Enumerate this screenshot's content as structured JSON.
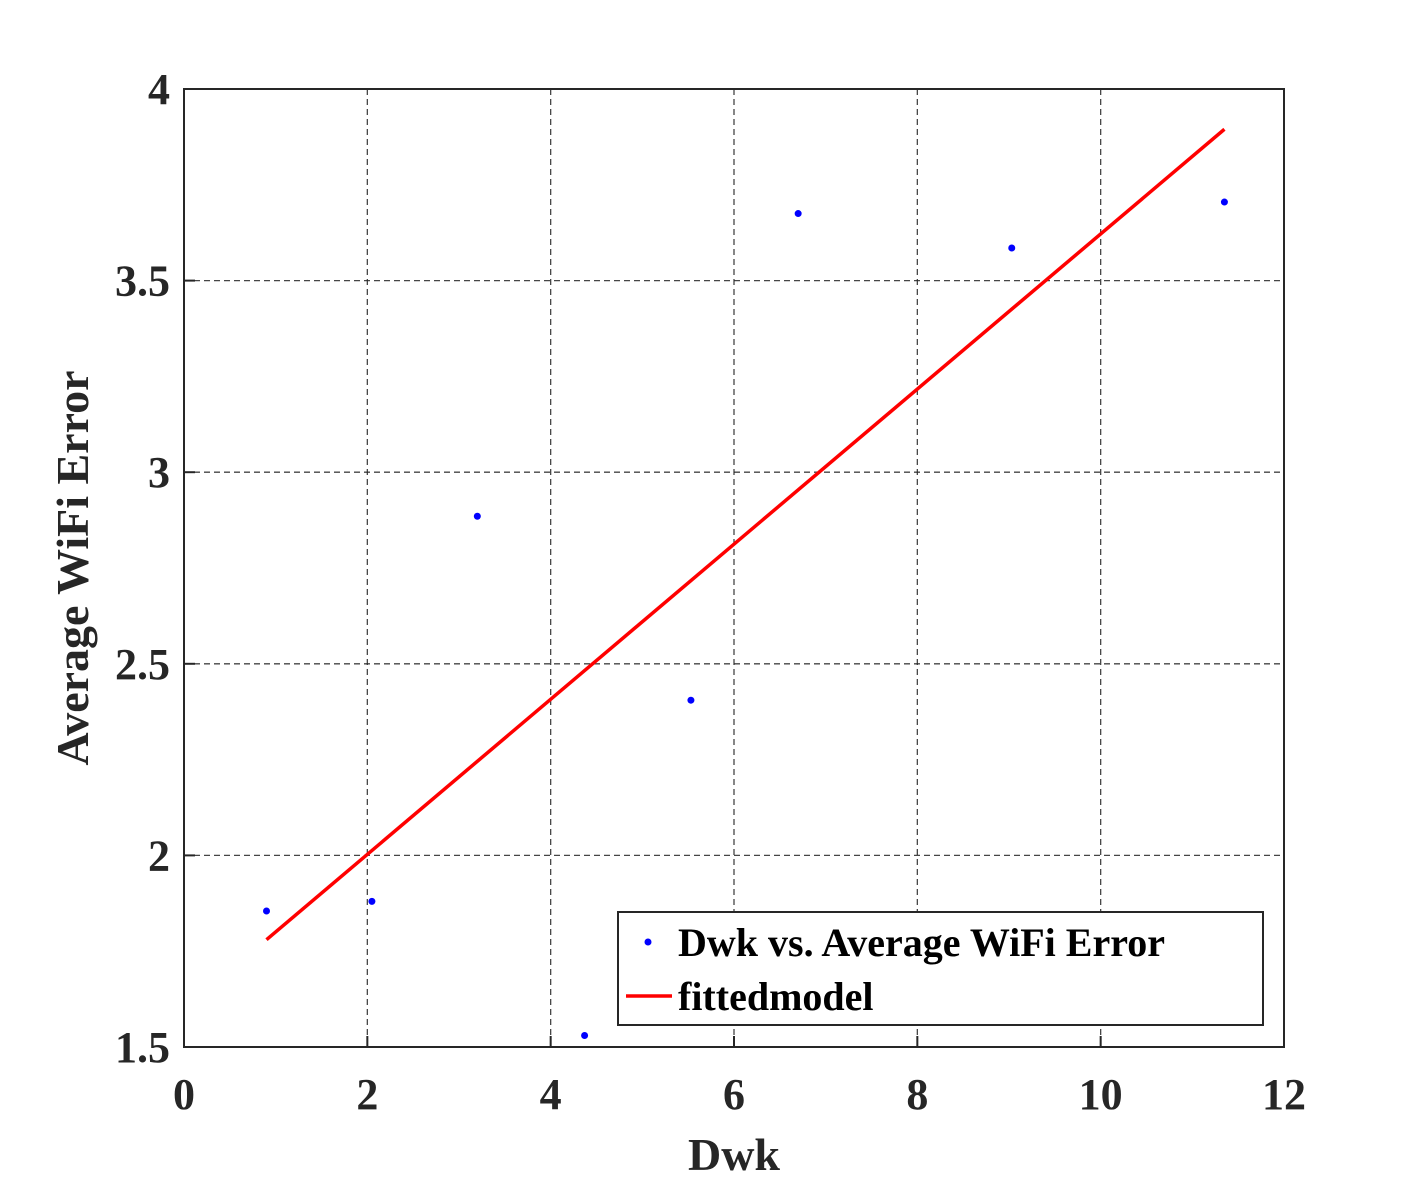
{
  "chart_data": {
    "type": "scatter",
    "title": "",
    "xlabel": "Dwk",
    "ylabel": "Average WiFi Error",
    "xlim": [
      0,
      12
    ],
    "ylim": [
      1.5,
      4
    ],
    "xticks": [
      "0",
      "2",
      "4",
      "6",
      "8",
      "10",
      "12"
    ],
    "yticks": [
      "1.5",
      "2",
      "2.5",
      "3",
      "3.5",
      "4"
    ],
    "grid": true,
    "legend_position": "bottom-right",
    "series": [
      {
        "name": "Dwk vs. Average WiFi Error",
        "type": "scatter",
        "color": "#0000ff",
        "points": [
          {
            "x": 0.9,
            "y": 1.855
          },
          {
            "x": 2.05,
            "y": 1.88
          },
          {
            "x": 3.2,
            "y": 2.885
          },
          {
            "x": 4.37,
            "y": 1.53
          },
          {
            "x": 5.53,
            "y": 2.405
          },
          {
            "x": 6.7,
            "y": 3.675
          },
          {
            "x": 9.03,
            "y": 3.585
          },
          {
            "x": 11.35,
            "y": 3.705
          }
        ]
      },
      {
        "name": "fittedmodel",
        "type": "line",
        "color": "#ff0000",
        "points": [
          {
            "x": 0.9,
            "y": 1.78
          },
          {
            "x": 11.35,
            "y": 3.895
          }
        ]
      }
    ]
  }
}
